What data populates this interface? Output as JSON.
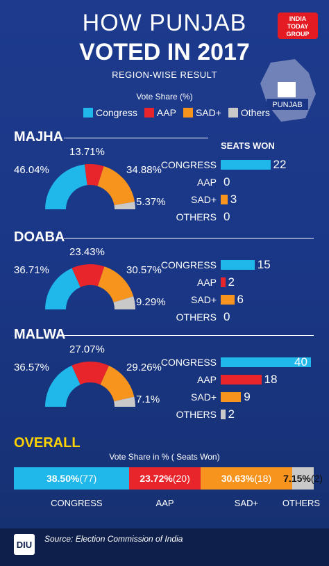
{
  "title_line1": "HOW PUNJAB",
  "title_line2": "VOTED IN 2017",
  "subtitle": "REGION-WISE RESULT",
  "vote_share_label": "Vote Share (%)",
  "brand": {
    "line1": "INDIA",
    "line2": "TODAY",
    "line3": "GROUP"
  },
  "map_label": "PUNJAB",
  "colors": {
    "congress": "#20b7ea",
    "aap": "#e8252b",
    "sad": "#f7941d",
    "others": "#c9c9c9"
  },
  "legend": [
    {
      "name": "Congress",
      "color": "#20b7ea"
    },
    {
      "name": "AAP",
      "color": "#e8252b"
    },
    {
      "name": "SAD+",
      "color": "#f7941d"
    },
    {
      "name": "Others",
      "color": "#c9c9c9"
    }
  ],
  "seats_won_label": "SEATS WON",
  "chart_data": [
    {
      "type": "pie",
      "region": "MAJHA",
      "categories": [
        "Congress",
        "AAP",
        "SAD+",
        "Others"
      ],
      "values": [
        46.04,
        13.71,
        34.88,
        5.37
      ],
      "labels": [
        "46.04%",
        "13.71%",
        "34.88%",
        "5.37%"
      ]
    },
    {
      "type": "bar",
      "region": "MAJHA",
      "title": "SEATS WON",
      "categories": [
        "CONGRESS",
        "AAP",
        "SAD+",
        "OTHERS"
      ],
      "values": [
        22,
        0,
        3,
        0
      ]
    },
    {
      "type": "pie",
      "region": "DOABA",
      "categories": [
        "Congress",
        "AAP",
        "SAD+",
        "Others"
      ],
      "values": [
        36.71,
        23.43,
        30.57,
        9.29
      ],
      "labels": [
        "36.71%",
        "23.43%",
        "30.57%",
        "9.29%"
      ]
    },
    {
      "type": "bar",
      "region": "DOABA",
      "categories": [
        "CONGRESS",
        "AAP",
        "SAD+",
        "OTHERS"
      ],
      "values": [
        15,
        2,
        6,
        0
      ]
    },
    {
      "type": "pie",
      "region": "MALWA",
      "categories": [
        "Congress",
        "AAP",
        "SAD+",
        "Others"
      ],
      "values": [
        36.57,
        27.07,
        29.26,
        7.1
      ],
      "labels": [
        "36.57%",
        "27.07%",
        "29.26%",
        "7.1%"
      ]
    },
    {
      "type": "bar",
      "region": "MALWA",
      "categories": [
        "CONGRESS",
        "AAP",
        "SAD+",
        "OTHERS"
      ],
      "values": [
        40,
        18,
        9,
        2
      ]
    },
    {
      "type": "bar",
      "region": "OVERALL",
      "title": "Vote Share in % ( Seats Won)",
      "categories": [
        "CONGRESS",
        "AAP",
        "SAD+",
        "OTHERS"
      ],
      "values": [
        38.5,
        23.72,
        30.63,
        7.15
      ],
      "seats": [
        77,
        20,
        18,
        2
      ],
      "value_labels": [
        "38.50%",
        "23.72%",
        "30.63%",
        "7.15%"
      ],
      "seat_labels": [
        "(77)",
        "(20)",
        "(18)",
        "(2)"
      ]
    }
  ],
  "overall_label": "OVERALL",
  "overall_sub": "Vote Share in % ( Seats Won)",
  "footer": {
    "logo": "DIU",
    "source": "Source: Election Commission of India"
  }
}
